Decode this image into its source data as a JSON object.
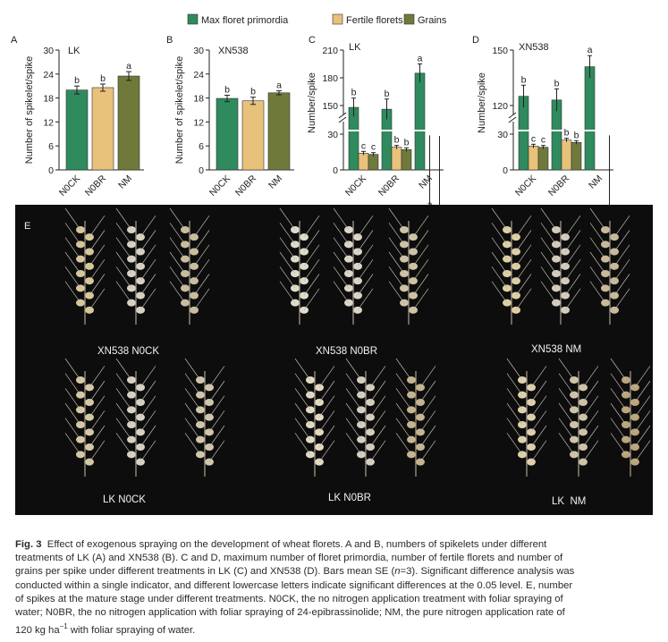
{
  "legend": {
    "items": [
      {
        "label": "Max floret primordia",
        "color": "#2f8a5e"
      },
      {
        "label": "Fertile florets",
        "color": "#e8c17a"
      },
      {
        "label": "Grains",
        "color": "#6f7a3a"
      }
    ]
  },
  "chart_data": [
    {
      "panel": "A",
      "type": "bar",
      "title": "LK",
      "ylabel": "Number of spikelet/spike",
      "categories": [
        "N0CK",
        "N0BR",
        "NM"
      ],
      "values": [
        20.0,
        20.6,
        23.5
      ],
      "errors": [
        1.0,
        0.9,
        1.1
      ],
      "letters": [
        "b",
        "b",
        "a"
      ],
      "colors": [
        "#2f8a5e",
        "#e8c17a",
        "#6f7a3a"
      ],
      "ylim": [
        0,
        30
      ],
      "yticks": [
        "0",
        "6",
        "12",
        "18",
        "24",
        "30"
      ]
    },
    {
      "panel": "B",
      "type": "bar",
      "title": "XN538",
      "ylabel": "Number of spikelet/spike",
      "categories": [
        "N0CK",
        "N0BR",
        "NM"
      ],
      "values": [
        17.9,
        17.3,
        19.3
      ],
      "errors": [
        0.8,
        0.9,
        0.5
      ],
      "letters": [
        "b",
        "b",
        "a"
      ],
      "colors": [
        "#2f8a5e",
        "#e8c17a",
        "#6f7a3a"
      ],
      "ylim": [
        0,
        30
      ],
      "yticks": [
        "0",
        "6",
        "12",
        "18",
        "24",
        "30"
      ]
    },
    {
      "panel": "C",
      "type": "bar",
      "title": "LK",
      "ylabel": "Number/spike",
      "categories": [
        "N0CK",
        "N0BR",
        "NM"
      ],
      "series": [
        {
          "name": "Max floret primordia",
          "values": [
            148,
            146,
            185
          ],
          "errors": [
            10,
            11,
            10
          ],
          "letters": [
            "b",
            "b",
            "a"
          ]
        },
        {
          "name": "Fertile florets",
          "values": [
            14,
            19,
            33
          ],
          "errors": [
            1.5,
            1.5,
            4
          ],
          "letters": [
            "c",
            "b",
            "a"
          ]
        },
        {
          "name": "Grains",
          "values": [
            13,
            17,
            31
          ],
          "errors": [
            1.5,
            1.5,
            2.5
          ],
          "letters": [
            "c",
            "b",
            "a"
          ]
        }
      ],
      "axis_break": true,
      "yticks": [
        "0",
        "30",
        "150",
        "180",
        "210"
      ]
    },
    {
      "panel": "D",
      "type": "bar",
      "title": "XN538",
      "ylabel": "Number/spike",
      "categories": [
        "N0CK",
        "N0BR",
        "NM"
      ],
      "series": [
        {
          "name": "Max floret primordia",
          "values": [
            125,
            123,
            141
          ],
          "errors": [
            6,
            6,
            6
          ],
          "letters": [
            "b",
            "b",
            "a"
          ]
        },
        {
          "name": "Fertile florets",
          "values": [
            20,
            25,
            42
          ],
          "errors": [
            1.5,
            1.5,
            3
          ],
          "letters": [
            "c",
            "b",
            "a"
          ]
        },
        {
          "name": "Grains",
          "values": [
            19,
            23,
            34
          ],
          "errors": [
            1.5,
            1.5,
            5
          ],
          "letters": [
            "c",
            "b",
            "a"
          ]
        }
      ],
      "axis_break": true,
      "yticks": [
        "0",
        "30",
        "120",
        "150"
      ]
    }
  ],
  "photo": {
    "letter": "E",
    "labels": [
      "XN538 N0CK",
      "XN538 N0BR",
      "XN538 NM",
      "LK N0CK",
      "LK N0BR",
      "LK  NM"
    ]
  },
  "caption": {
    "fig_label": "Fig. 3",
    "line1": "Effect of exogenous spraying on the development of wheat florets.  A and B, numbers of spikelets under different",
    "line2": "treatments of LK (A) and XN538 (B).  C and D, maximum number of floret primordia, number of fertile florets and number of",
    "line3a": "grains per spike under different treatments in LK (C) and XN538 (D).  Bars mean SE (",
    "line3n": "n",
    "line3b": "=3).  Significant difference analysis was",
    "line4": "conducted within a single indicator, and different lowercase letters indicate significant differences at the 0.05 level.  E, number",
    "line5": "of spikes at the mature stage under different treatments.  N0CK, the no nitrogen application treatment with foliar spraying of",
    "line6": "water; N0BR, the no nitrogen application with foliar spraying of 24-epibrassinolide; NM, the pure nitrogen application rate of",
    "line7a": "120 kg ha",
    "line7sup": "−1",
    "line7b": " with foliar spraying of water."
  }
}
